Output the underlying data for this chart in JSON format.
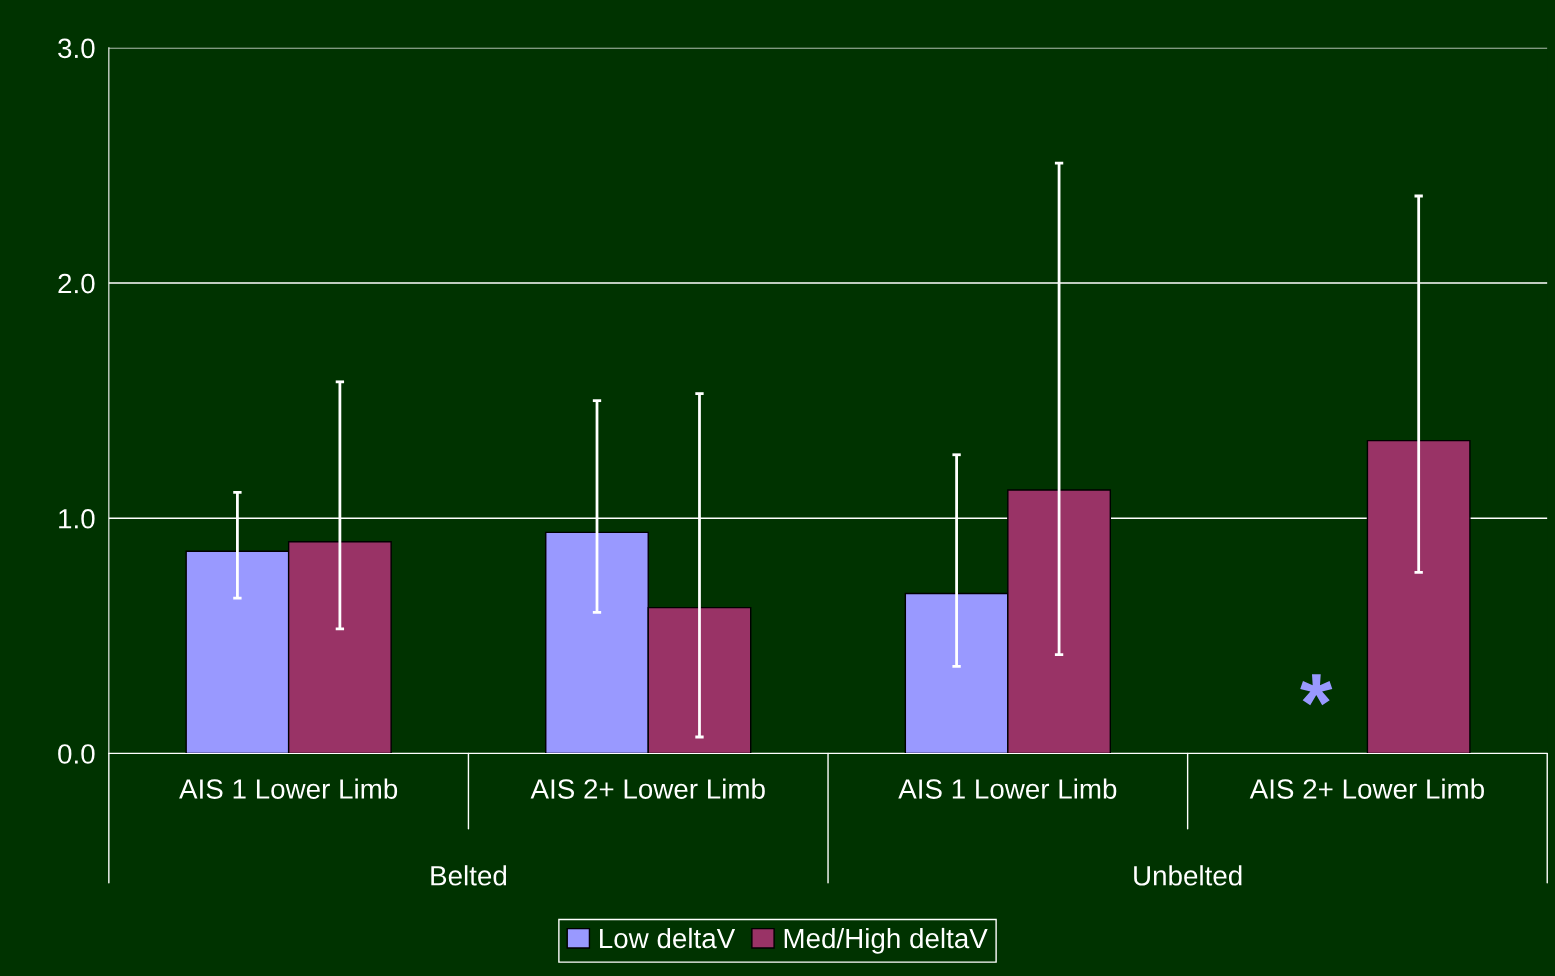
{
  "chart_data": {
    "type": "bar",
    "categories": [
      "AIS 1 Lower Limb",
      "AIS 2+ Lower Limb",
      "AIS 1 Lower Limb",
      "AIS 2+ Lower Limb"
    ],
    "series": [
      {
        "name": "Low deltaV",
        "color": "#9999ff",
        "values": [
          0.86,
          0.94,
          0.68,
          null
        ],
        "errors": [
          [
            0.66,
            1.11
          ],
          [
            0.6,
            1.5
          ],
          [
            0.37,
            1.27
          ],
          null
        ]
      },
      {
        "name": "Med/High deltaV",
        "color": "#993366",
        "values": [
          0.9,
          0.62,
          1.12,
          1.33
        ],
        "errors": [
          [
            0.53,
            1.58
          ],
          [
            0.07,
            1.53
          ],
          [
            0.42,
            2.51
          ],
          [
            0.77,
            2.37
          ]
        ]
      }
    ],
    "annotations": [
      "*",
      "Belted",
      "Unbelted"
    ],
    "ylim": [
      0,
      3
    ],
    "yticks": [
      {
        "value": 0,
        "label": "0.0"
      },
      {
        "value": 1,
        "label": "1.0"
      },
      {
        "value": 2,
        "label": "2.0"
      },
      {
        "value": 3,
        "label": "3.0"
      }
    ],
    "grid": "y",
    "legend": "bottom"
  }
}
